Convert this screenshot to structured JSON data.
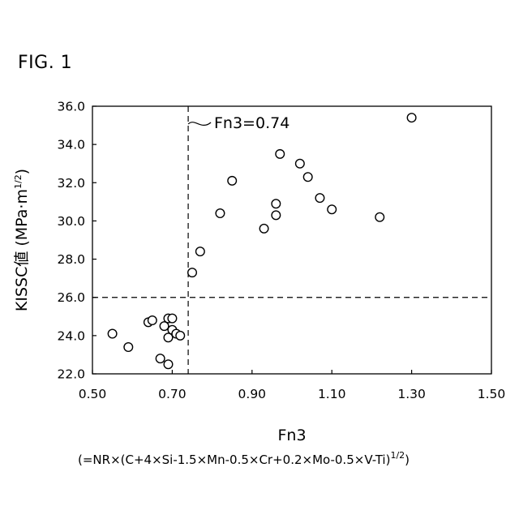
{
  "figure_label": "FIG. 1",
  "chart_data": {
    "type": "scatter",
    "xlabel": "Fn3",
    "xlabel_formula_main": "(=NR×(C+4×Si-1.5×Mn-0.5×Cr+0.2×Mo-0.5×V-Ti)",
    "xlabel_formula_exp": "1/2",
    "xlabel_formula_close": ")",
    "ylabel_main": "KISSC値 (MPa·m",
    "ylabel_exp": "1/2",
    "ylabel_close": ")",
    "xlim": [
      0.5,
      1.5
    ],
    "ylim": [
      22.0,
      36.0
    ],
    "x_ticks": [
      "0.50",
      "0.70",
      "0.90",
      "1.10",
      "1.30",
      "1.50"
    ],
    "x_tick_values": [
      0.5,
      0.7,
      0.9,
      1.1,
      1.3,
      1.5
    ],
    "y_ticks": [
      "22.0",
      "24.0",
      "26.0",
      "28.0",
      "30.0",
      "32.0",
      "34.0",
      "36.0"
    ],
    "y_tick_values": [
      22,
      24,
      26,
      28,
      30,
      32,
      34,
      36
    ],
    "grid": false,
    "reference_lines": {
      "vertical_x": 0.74,
      "vertical_label": "Fn3=0.74",
      "horizontal_y": 26.0
    },
    "points": [
      {
        "x": 0.55,
        "y": 24.1
      },
      {
        "x": 0.59,
        "y": 23.4
      },
      {
        "x": 0.64,
        "y": 24.7
      },
      {
        "x": 0.65,
        "y": 24.8
      },
      {
        "x": 0.67,
        "y": 22.8
      },
      {
        "x": 0.68,
        "y": 24.5
      },
      {
        "x": 0.69,
        "y": 24.9
      },
      {
        "x": 0.69,
        "y": 23.9
      },
      {
        "x": 0.69,
        "y": 22.5
      },
      {
        "x": 0.7,
        "y": 24.9
      },
      {
        "x": 0.7,
        "y": 24.3
      },
      {
        "x": 0.71,
        "y": 24.1
      },
      {
        "x": 0.72,
        "y": 24.0
      },
      {
        "x": 0.75,
        "y": 27.3
      },
      {
        "x": 0.77,
        "y": 28.4
      },
      {
        "x": 0.82,
        "y": 30.4
      },
      {
        "x": 0.85,
        "y": 32.1
      },
      {
        "x": 0.93,
        "y": 29.6
      },
      {
        "x": 0.96,
        "y": 30.9
      },
      {
        "x": 0.96,
        "y": 30.3
      },
      {
        "x": 0.97,
        "y": 33.5
      },
      {
        "x": 1.02,
        "y": 33.0
      },
      {
        "x": 1.04,
        "y": 32.3
      },
      {
        "x": 1.07,
        "y": 31.2
      },
      {
        "x": 1.1,
        "y": 30.6
      },
      {
        "x": 1.22,
        "y": 30.2
      },
      {
        "x": 1.3,
        "y": 35.4
      }
    ]
  }
}
